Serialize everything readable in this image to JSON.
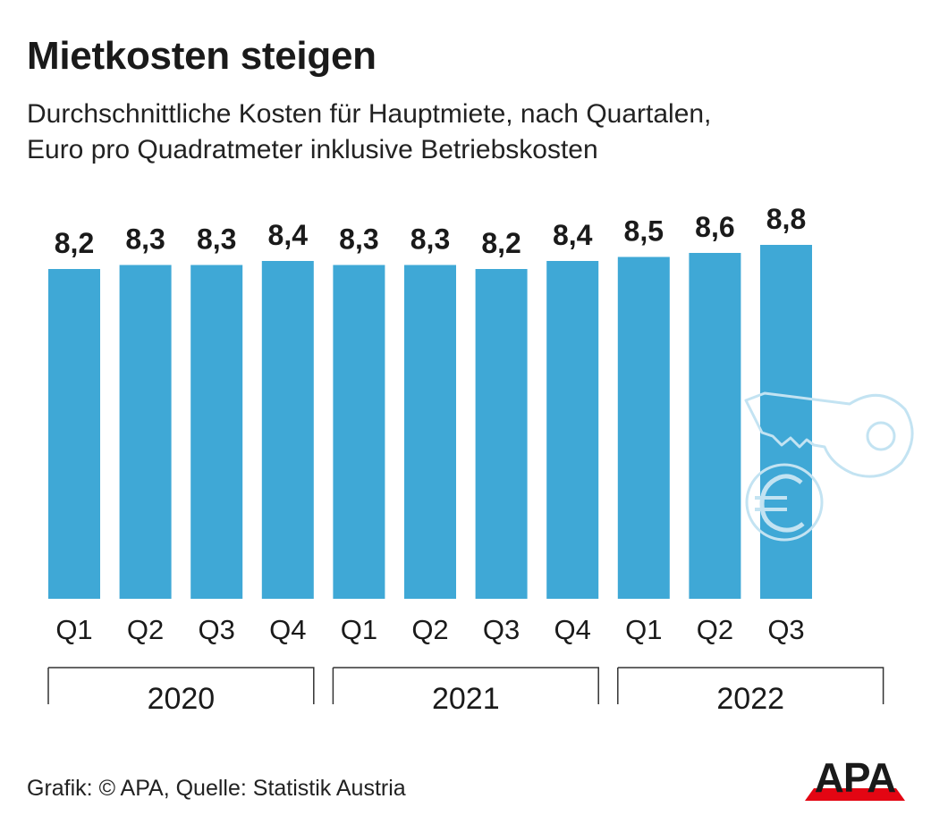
{
  "header": {
    "title": "Mietkosten steigen",
    "subtitle_line1": "Durchschnittliche Kosten für Hauptmiete, nach Quartalen,",
    "subtitle_line2": "Euro pro Quadratmeter inklusive Betriebskosten"
  },
  "chart_data": {
    "type": "bar",
    "title": "Mietkosten steigen",
    "subtitle": "Durchschnittliche Kosten für Hauptmiete, nach Quartalen, Euro pro Quadratmeter inklusive Betriebskosten",
    "categories": [
      "Q1",
      "Q2",
      "Q3",
      "Q4",
      "Q1",
      "Q2",
      "Q3",
      "Q4",
      "Q1",
      "Q2",
      "Q3"
    ],
    "groups": [
      {
        "label": "2020",
        "quarters": 4
      },
      {
        "label": "2021",
        "quarters": 4
      },
      {
        "label": "2022",
        "quarters": 3
      }
    ],
    "values": [
      8.2,
      8.3,
      8.3,
      8.4,
      8.3,
      8.3,
      8.2,
      8.4,
      8.5,
      8.6,
      8.8
    ],
    "value_labels": [
      "8,2",
      "8,3",
      "8,3",
      "8,4",
      "8,3",
      "8,3",
      "8,2",
      "8,4",
      "8,5",
      "8,6",
      "8,8"
    ],
    "ylim": [
      0,
      8.8
    ],
    "bar_color": "#3fa8d6",
    "grid": false
  },
  "decoration": {
    "icons": [
      "key-icon",
      "euro-coin-icon"
    ],
    "icon_color": "#c3e3f2"
  },
  "footer": {
    "source": "Grafik: © APA, Quelle: Statistik Austria",
    "logo_text": "APA",
    "logo_color": "#1a1a1a",
    "logo_accent": "#e30613"
  }
}
